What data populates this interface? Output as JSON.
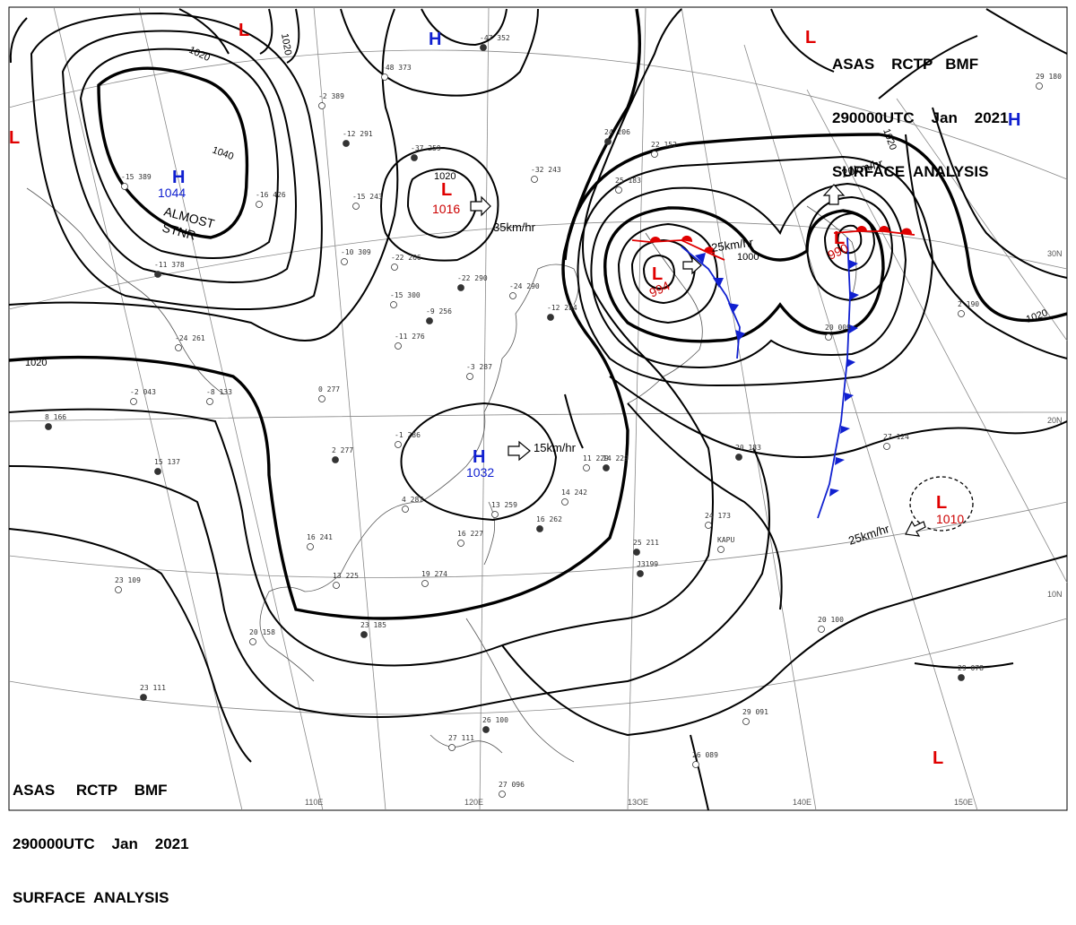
{
  "header_top": {
    "line1": "ASAS    RCTP   BMF",
    "line2": "290000UTC    Jan    2021",
    "line3": "SURFACE  ANALYSIS"
  },
  "header_bottom": {
    "line1": "ASAS     RCTP    BMF",
    "line2": "290000UTC    Jan    2021",
    "line3": "SURFACE  ANALYSIS"
  },
  "isobar_labels": [
    "1020",
    "1020",
    "1040",
    "1020",
    "1020",
    "1000",
    "1020",
    "1020"
  ],
  "pressure_centers": [
    {
      "type": "H",
      "value": "1044",
      "note1": "ALMOST",
      "note2": "STNR"
    },
    {
      "type": "L",
      "value": "1016",
      "speed": "35km/hr"
    },
    {
      "type": "H",
      "value": "1032",
      "speed": "15km/hr"
    },
    {
      "type": "L",
      "value": "994",
      "speed": "25km/hr"
    },
    {
      "type": "L",
      "value": "990",
      "speed": "20km/hr"
    },
    {
      "type": "L",
      "value": "1010",
      "speed": "25km/hr"
    },
    {
      "type": "H",
      "value": ""
    },
    {
      "type": "H",
      "value": ""
    },
    {
      "type": "L",
      "value": ""
    },
    {
      "type": "L",
      "value": ""
    },
    {
      "type": "L",
      "value": ""
    },
    {
      "type": "L",
      "value": ""
    }
  ],
  "longitude_labels": [
    "110E",
    "120E",
    "13OE",
    "140E",
    "150E"
  ],
  "latitude_labels": [
    "30N",
    "20N",
    "10N"
  ],
  "stations": [
    "-47 352",
    "-48 373",
    "-2 389",
    "-37 259",
    "-15 243",
    "-32 243",
    "-12 291",
    "-15 389",
    "-16 426",
    "-11 378",
    "-10 309",
    "-22 266",
    "-22 290",
    "-24 290",
    "-15 300",
    "-9 256",
    "-11 276",
    "-24 261",
    "-12 284",
    "-8 133",
    "-2 043",
    "8 166",
    "-3 287",
    "0 277",
    "2 277",
    "-1 286",
    "4 287",
    "15 137",
    "13 259",
    "16 227",
    "14 229",
    "11 229",
    "14 242",
    "16 262",
    "13 225",
    "19 274",
    "23 185",
    "20 158",
    "23 109",
    "23 111",
    "16 241",
    "27 111",
    "26 100",
    "27 096",
    "29 091",
    "29 078",
    "26 089",
    "24 173",
    "25 211",
    "20 100",
    "27 124",
    "20 183",
    "2 190",
    "29 180",
    "J3199",
    "KAPU",
    "20 009",
    "24 206",
    "25 183",
    "22 152"
  ],
  "colors": {
    "low": "#e00000",
    "high": "#1020d0",
    "cold_front": "#1020d0",
    "warm_front": "#e00000",
    "isobar": "#000000"
  }
}
